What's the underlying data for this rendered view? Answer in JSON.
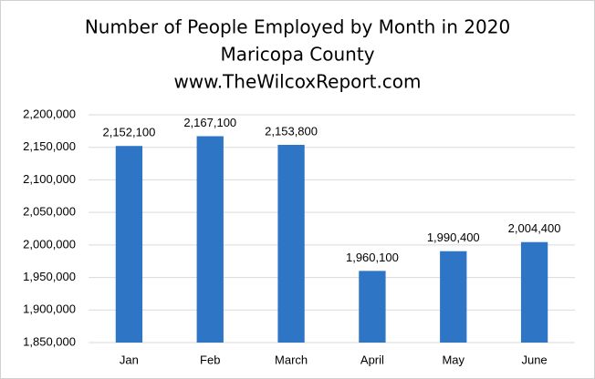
{
  "chart_data": {
    "type": "bar",
    "title": [
      "Number of People Employed by Month in 2020",
      "Maricopa County",
      "www.TheWilcoxReport.com"
    ],
    "categories": [
      "Jan",
      "Feb",
      "March",
      "April",
      "May",
      "June"
    ],
    "values": [
      2152100,
      2167100,
      2153800,
      1960100,
      1990400,
      2004400
    ],
    "value_labels": [
      "2,152,100",
      "2,167,100",
      "2,153,800",
      "1,960,100",
      "1,990,400",
      "2,004,400"
    ],
    "color": "#2e75c6",
    "ylim": [
      1850000,
      2200000
    ],
    "yticks": [
      {
        "value": 1850000,
        "label": "1,850,000"
      },
      {
        "value": 1900000,
        "label": "1,900,000"
      },
      {
        "value": 1950000,
        "label": "1,950,000"
      },
      {
        "value": 2000000,
        "label": "2,000,000"
      },
      {
        "value": 2050000,
        "label": "2,050,000"
      },
      {
        "value": 2100000,
        "label": "2,100,000"
      },
      {
        "value": 2150000,
        "label": "2,150,000"
      },
      {
        "value": 2200000,
        "label": "2,200,000"
      }
    ],
    "grid": true
  }
}
